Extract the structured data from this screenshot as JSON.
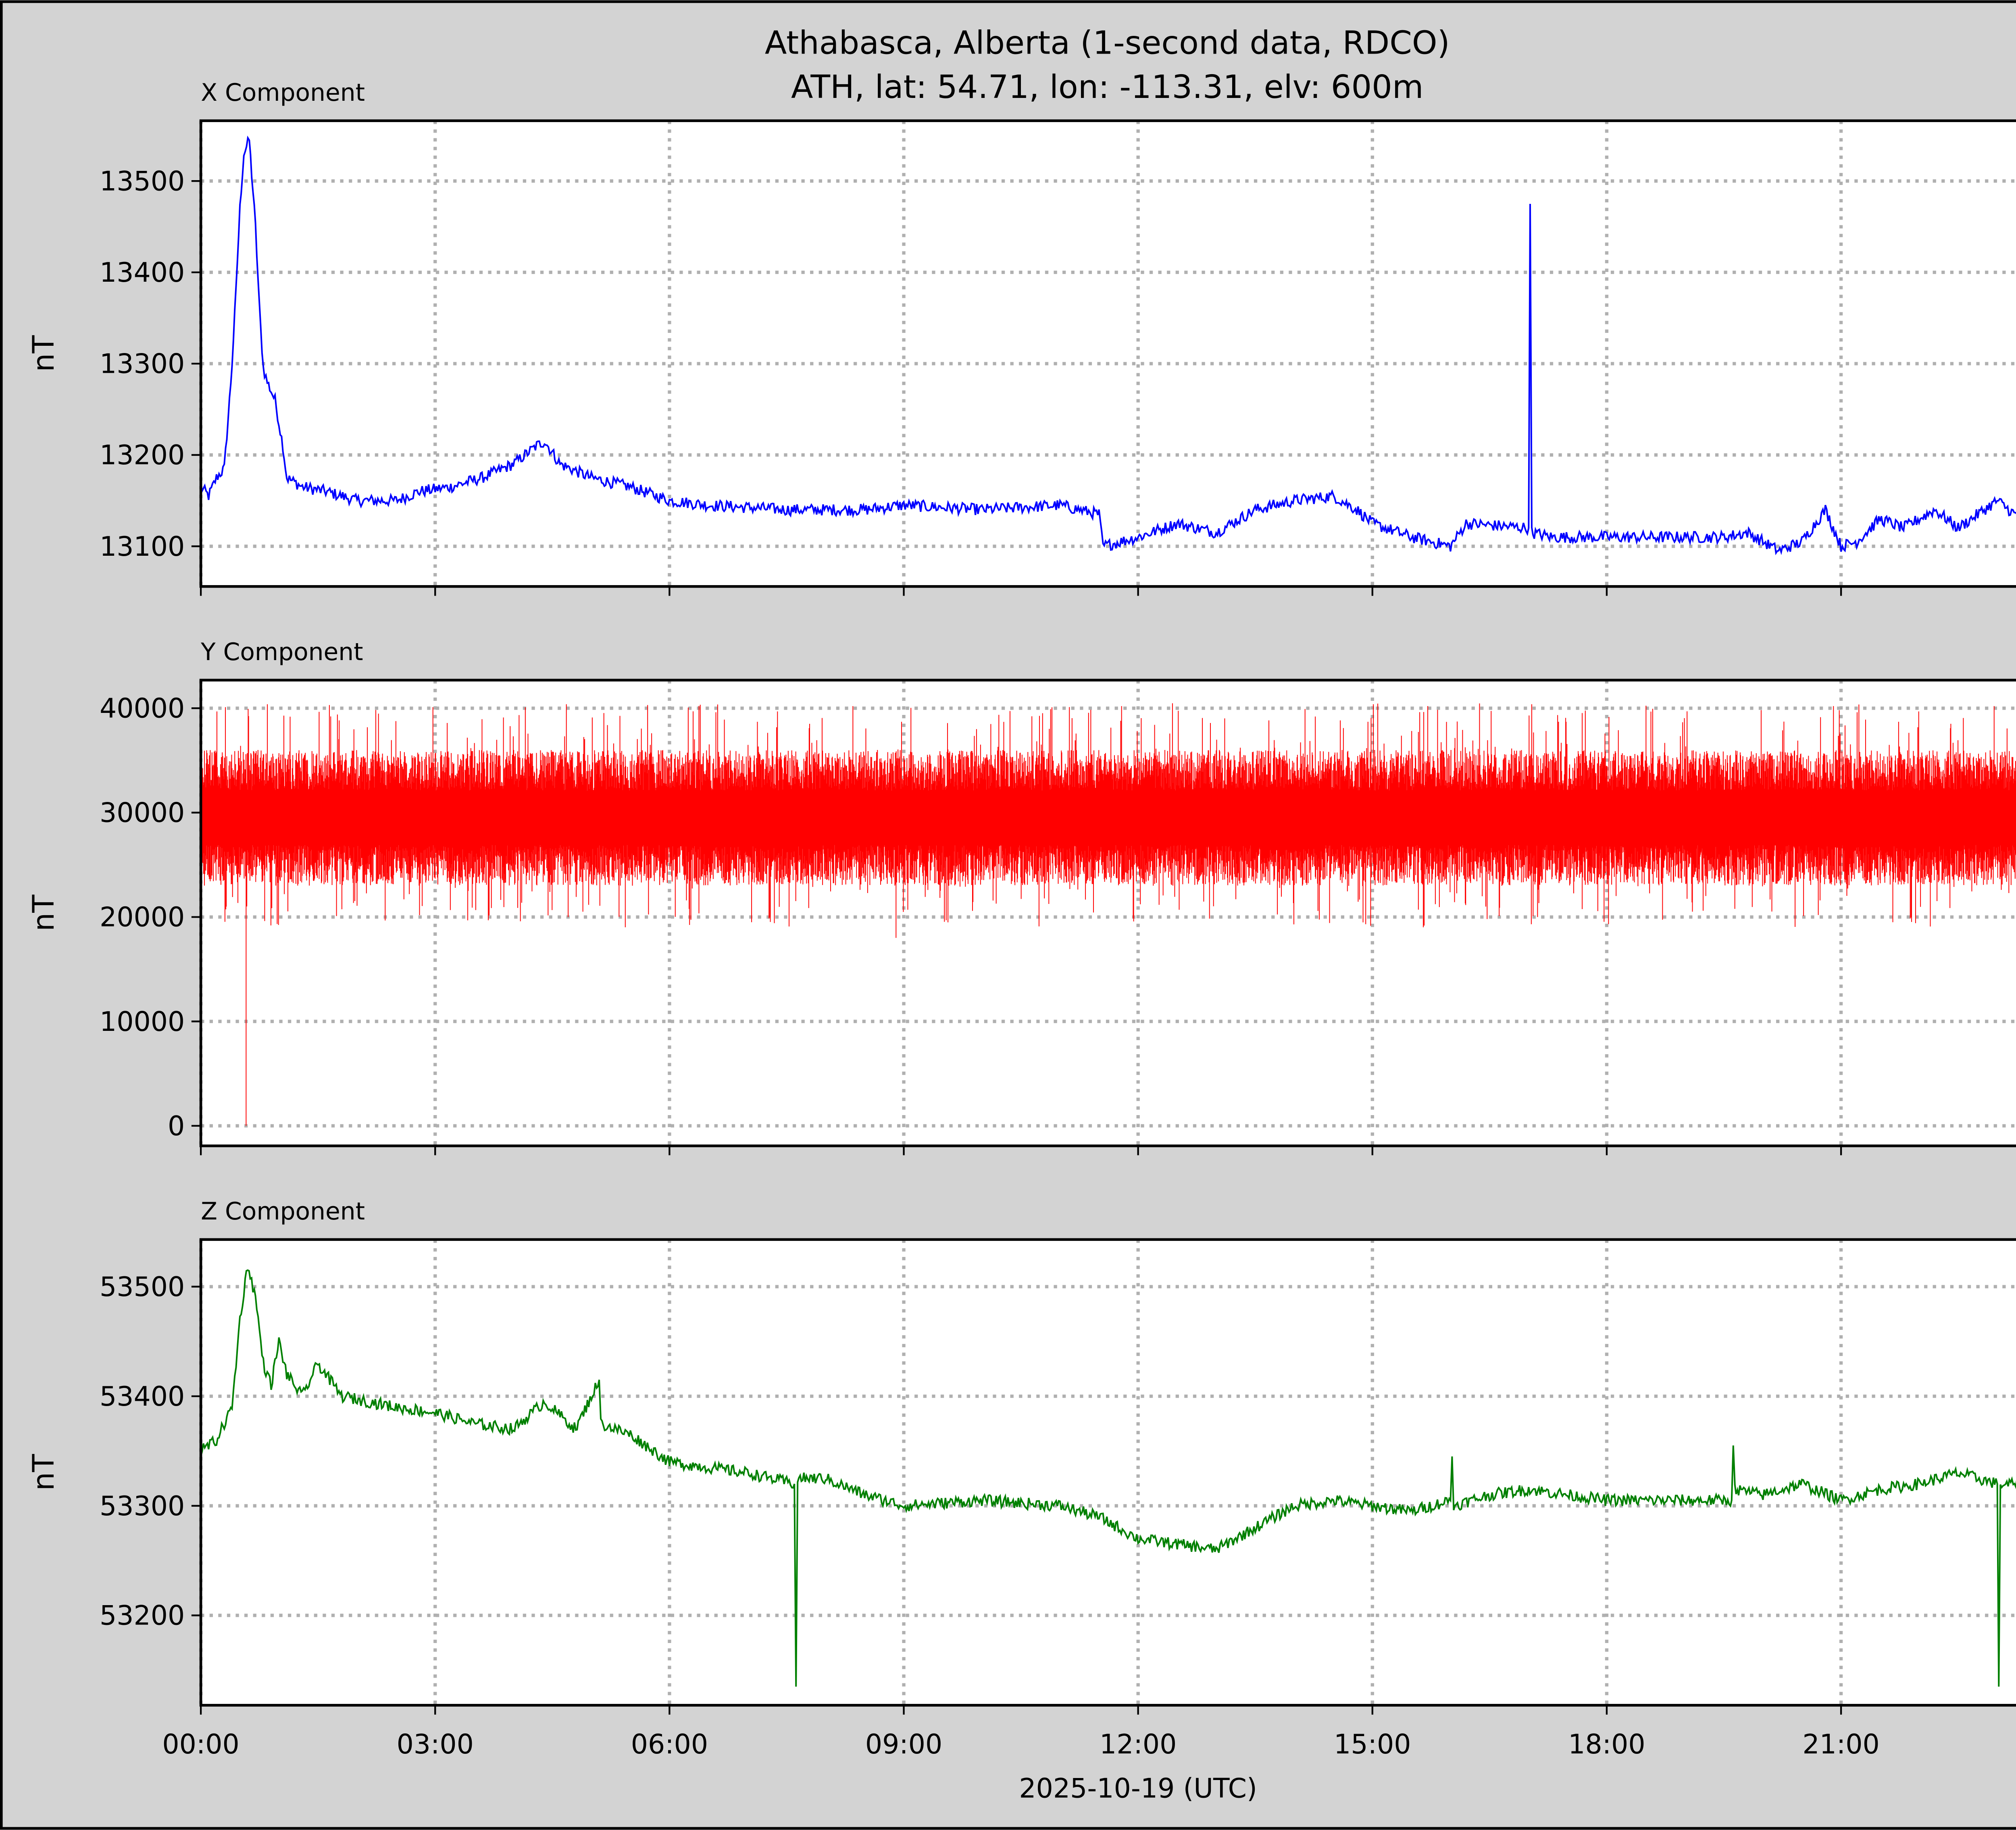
{
  "title_line1": "Athabasca, Alberta (1-second data, RDCO)",
  "title_line2": "ATH, lat: 54.71, lon: -113.31, elv: 600m",
  "xlabel": "2025-10-19 (UTC)",
  "x_ticks": [
    "00:00",
    "03:00",
    "06:00",
    "09:00",
    "12:00",
    "15:00",
    "18:00",
    "21:00"
  ],
  "x_tick_hours": [
    0,
    3,
    6,
    9,
    12,
    15,
    18,
    21
  ],
  "xlim_hours": [
    0,
    24
  ],
  "chart_data": [
    {
      "type": "line",
      "title": "X Component",
      "ylabel": "nT",
      "color": "#0000ff",
      "ylim": [
        13056,
        13566
      ],
      "yticks": [
        13100,
        13200,
        13300,
        13400,
        13500
      ],
      "grid": true,
      "x_hours": [
        0,
        0.1,
        0.2,
        0.3,
        0.35,
        0.4,
        0.45,
        0.5,
        0.55,
        0.62,
        0.7,
        0.75,
        0.8,
        0.85,
        0.95,
        1.05,
        1.1,
        1.3,
        1.6,
        2.0,
        2.5,
        2.8,
        3.2,
        3.6,
        4.0,
        4.3,
        4.4,
        4.6,
        5.0,
        5.5,
        6.0,
        6.5,
        7.5,
        8.5,
        9.0,
        10,
        11.0,
        11.5,
        11.55,
        12,
        12.5,
        13,
        13.5,
        14,
        14.5,
        14.8,
        15,
        15.5,
        16,
        16.2,
        17,
        17.02,
        17.04,
        17.3,
        18,
        19,
        19.5,
        19.8,
        20.2,
        20.5,
        20.8,
        21,
        21.2,
        21.5,
        21.8,
        22.2,
        22.5,
        23,
        23.3,
        23.7,
        23.9,
        24
      ],
      "values": [
        13165,
        13155,
        13175,
        13185,
        13240,
        13300,
        13380,
        13470,
        13530,
        13545,
        13450,
        13360,
        13295,
        13280,
        13260,
        13210,
        13175,
        13165,
        13160,
        13150,
        13150,
        13160,
        13165,
        13175,
        13190,
        13210,
        13215,
        13190,
        13175,
        13165,
        13150,
        13145,
        13140,
        13140,
        13145,
        13140,
        13145,
        13135,
        13100,
        13110,
        13125,
        13115,
        13140,
        13150,
        13155,
        13140,
        13125,
        13110,
        13100,
        13125,
        13120,
        13475,
        13115,
        13110,
        13110,
        13110,
        13110,
        13115,
        13095,
        13105,
        13140,
        13100,
        13105,
        13130,
        13120,
        13140,
        13120,
        13150,
        13130,
        13145,
        13150,
        13135
      ]
    },
    {
      "type": "line",
      "title": "Y Component",
      "ylabel": "nT",
      "color": "#ff0000",
      "ylim": [
        -1920,
        42690
      ],
      "yticks": [
        0,
        10000,
        20000,
        30000,
        40000
      ],
      "grid": true,
      "baseline": 29500,
      "typical_range": [
        23000,
        36000
      ],
      "extreme_range": [
        19000,
        40500
      ],
      "spikes": [
        {
          "x_hours": 0.58,
          "value": 0
        },
        {
          "x_hours": 8.9,
          "value": 18000
        },
        {
          "x_hours": 18.75,
          "value": 26000
        }
      ]
    },
    {
      "type": "line",
      "title": "Z Component",
      "ylabel": "nT",
      "color": "#008000",
      "ylim": [
        53118,
        53543
      ],
      "yticks": [
        53200,
        53300,
        53400,
        53500
      ],
      "grid": true,
      "x_hours": [
        0,
        0.2,
        0.4,
        0.5,
        0.6,
        0.7,
        0.8,
        0.9,
        1.0,
        1.1,
        1.3,
        1.5,
        1.8,
        2.5,
        3.0,
        3.5,
        4.0,
        4.4,
        4.8,
        5.1,
        5.12,
        5.5,
        6.0,
        7.0,
        7.6,
        7.62,
        7.64,
        8.0,
        8.5,
        9.0,
        10,
        11,
        11.5,
        12,
        12.5,
        13,
        13.5,
        14,
        14.5,
        15,
        15.5,
        16.0,
        16.02,
        16.04,
        16.5,
        17,
        18,
        19,
        19.6,
        19.62,
        19.64,
        20,
        20.5,
        21,
        21.5,
        22,
        22.5,
        23,
        23.02,
        23.04,
        23.5,
        24
      ],
      "values": [
        53350,
        53360,
        53390,
        53470,
        53520,
        53490,
        53430,
        53410,
        53450,
        53420,
        53400,
        53430,
        53400,
        53390,
        53385,
        53375,
        53370,
        53395,
        53370,
        53415,
        53375,
        53365,
        53340,
        53330,
        53320,
        53135,
        53325,
        53325,
        53310,
        53300,
        53305,
        53300,
        53290,
        53270,
        53265,
        53260,
        53280,
        53300,
        53305,
        53300,
        53295,
        53305,
        53345,
        53300,
        53310,
        53315,
        53305,
        53305,
        53305,
        53355,
        53315,
        53310,
        53320,
        53305,
        53315,
        53320,
        53330,
        53320,
        53135,
        53320,
        53320,
        53325
      ]
    }
  ]
}
